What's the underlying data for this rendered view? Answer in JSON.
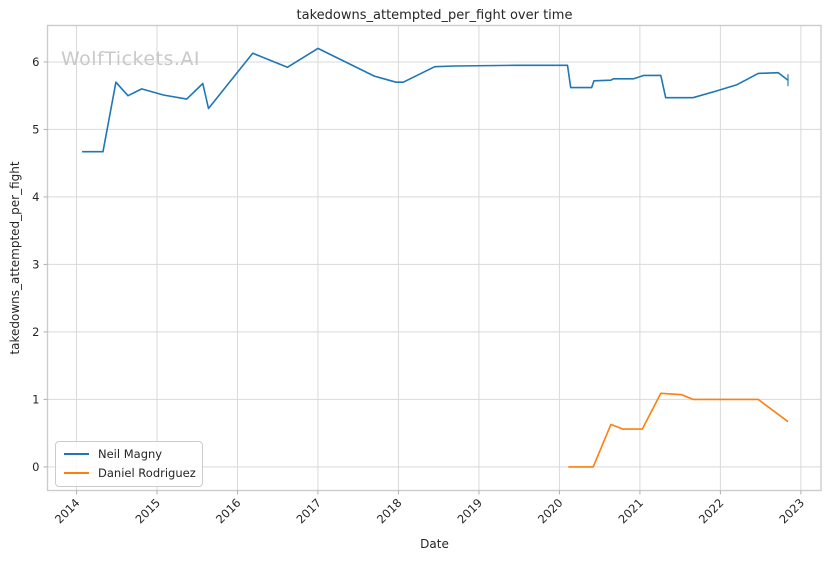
{
  "figure": {
    "watermark": "WolfTickets.AI"
  },
  "chart_data": {
    "type": "line",
    "title": "takedowns_attempted_per_fight over time",
    "xlabel": "Date",
    "ylabel": "takedowns_attempted_per_fight",
    "xlim": [
      2013.64,
      2023.25
    ],
    "ylim": [
      -0.35,
      6.54
    ],
    "xticks": [
      2014,
      2015,
      2016,
      2017,
      2018,
      2019,
      2020,
      2021,
      2022,
      2023
    ],
    "yticks": [
      0,
      1,
      2,
      3,
      4,
      5,
      6
    ],
    "grid": true,
    "grid_color": "#d9d9d9",
    "spine_color": "#cccccc",
    "tick_color": "#b0b0b0",
    "text_color": "#262626",
    "legend_position": "lower left",
    "series": [
      {
        "name": "Neil Magny",
        "color": "#1f77b4",
        "end_marker": "vline",
        "points": [
          [
            2014.07,
            4.67
          ],
          [
            2014.33,
            4.67
          ],
          [
            2014.49,
            5.7
          ],
          [
            2014.64,
            5.5
          ],
          [
            2014.81,
            5.6
          ],
          [
            2015.08,
            5.51
          ],
          [
            2015.37,
            5.45
          ],
          [
            2015.57,
            5.68
          ],
          [
            2015.64,
            5.31
          ],
          [
            2016.19,
            6.13
          ],
          [
            2016.62,
            5.92
          ],
          [
            2017.0,
            6.2
          ],
          [
            2017.7,
            5.79
          ],
          [
            2017.97,
            5.7
          ],
          [
            2018.06,
            5.7
          ],
          [
            2018.45,
            5.93
          ],
          [
            2018.7,
            5.94
          ],
          [
            2019.45,
            5.95
          ],
          [
            2020.1,
            5.95
          ],
          [
            2020.14,
            5.62
          ],
          [
            2020.4,
            5.62
          ],
          [
            2020.43,
            5.72
          ],
          [
            2020.64,
            5.73
          ],
          [
            2020.67,
            5.75
          ],
          [
            2020.92,
            5.75
          ],
          [
            2021.05,
            5.8
          ],
          [
            2021.26,
            5.8
          ],
          [
            2021.32,
            5.47
          ],
          [
            2021.66,
            5.47
          ],
          [
            2021.95,
            5.57
          ],
          [
            2022.2,
            5.66
          ],
          [
            2022.47,
            5.83
          ],
          [
            2022.72,
            5.84
          ],
          [
            2022.84,
            5.73
          ]
        ]
      },
      {
        "name": "Daniel Rodriguez",
        "color": "#ff7f0e",
        "end_marker": null,
        "points": [
          [
            2020.11,
            0.0
          ],
          [
            2020.42,
            0.0
          ],
          [
            2020.64,
            0.63
          ],
          [
            2020.79,
            0.56
          ],
          [
            2021.03,
            0.56
          ],
          [
            2021.26,
            1.09
          ],
          [
            2021.52,
            1.07
          ],
          [
            2021.66,
            1.0
          ],
          [
            2022.47,
            1.0
          ],
          [
            2022.84,
            0.67
          ]
        ]
      }
    ]
  }
}
